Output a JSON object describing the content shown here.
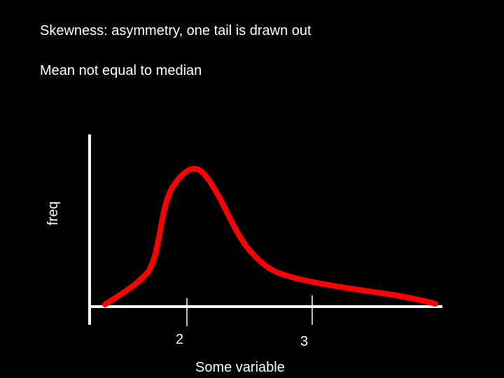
{
  "slide": {
    "title_line_1": "Skewness: asymmetry, one tail is drawn out",
    "title_line_2": "Mean not equal to median"
  },
  "axes": {
    "y_label": "freq",
    "x_label": "Some variable",
    "x_tick_labels": [
      "2",
      "3"
    ]
  },
  "colors": {
    "background": "#000000",
    "text": "#ffffff",
    "axis": "#ffffff",
    "curve": "#ff0000"
  }
}
